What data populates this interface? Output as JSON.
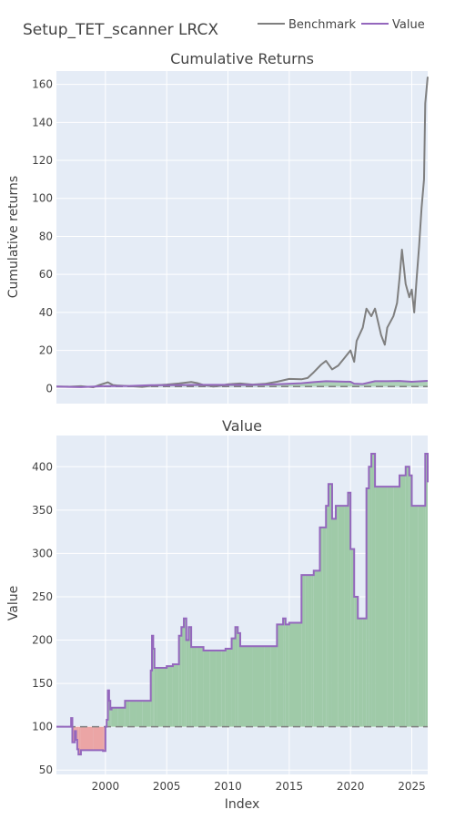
{
  "title": "Setup_TET_scanner LRCX",
  "legend": {
    "position": "top-right",
    "items": [
      {
        "label": "Benchmark",
        "color": "#7f7f7f"
      },
      {
        "label": "Value",
        "color": "#9467bd"
      }
    ]
  },
  "colors": {
    "plot_bg": "#e5ecf6",
    "grid": "#ffffff",
    "benchmark": "#7f7f7f",
    "value": "#9467bd",
    "fill_above": "#9fcaa8",
    "fill_below": "#eba5a5",
    "baseline": "#808080"
  },
  "chart_data": [
    {
      "type": "line",
      "title": "Cumulative Returns",
      "xlabel": "",
      "ylabel": "Cumulative returns",
      "xlim": [
        1996.0,
        2026.3
      ],
      "ylim": [
        -8,
        167
      ],
      "xticks": [
        2000,
        2005,
        2010,
        2015,
        2020,
        2025
      ],
      "yticks": [
        0,
        20,
        40,
        60,
        80,
        100,
        120,
        140,
        160
      ],
      "grid": true,
      "baseline": 1,
      "series": [
        {
          "name": "Benchmark",
          "x": [
            1996.0,
            1997.0,
            1998.0,
            1999.0,
            1999.5,
            2000.2,
            2000.6,
            2001.0,
            2002.0,
            2003.0,
            2004.0,
            2005.0,
            2006.0,
            2007.0,
            2007.5,
            2008.0,
            2008.8,
            2009.2,
            2010.0,
            2011.0,
            2012.0,
            2013.0,
            2014.0,
            2015.0,
            2016.0,
            2016.5,
            2017.0,
            2017.6,
            2018.0,
            2018.5,
            2019.0,
            2019.5,
            2020.0,
            2020.3,
            2020.5,
            2021.0,
            2021.3,
            2021.7,
            2022.0,
            2022.5,
            2022.8,
            2023.0,
            2023.5,
            2023.8,
            2024.0,
            2024.2,
            2024.5,
            2024.8,
            2025.0,
            2025.2,
            2025.4,
            2025.6,
            2025.8,
            2026.0,
            2026.1,
            2026.3
          ],
          "y": [
            1.0,
            0.9,
            1.2,
            0.6,
            1.8,
            3.2,
            1.8,
            1.5,
            1.2,
            0.8,
            1.6,
            2.0,
            2.6,
            3.4,
            2.8,
            1.8,
            1.0,
            1.2,
            2.2,
            2.6,
            2.0,
            2.4,
            3.5,
            5.0,
            4.8,
            5.5,
            8.5,
            12.5,
            14.5,
            10.0,
            12.0,
            16.0,
            20.0,
            14.0,
            25.0,
            32.0,
            42.0,
            38.0,
            42.0,
            28.0,
            23.0,
            32.0,
            38.0,
            45.0,
            58.0,
            73.0,
            55.0,
            48.0,
            52.0,
            40.0,
            58.0,
            75.0,
            95.0,
            110.0,
            150.0,
            164.0
          ]
        },
        {
          "name": "Value",
          "x": [
            1996.0,
            1997.0,
            1998.0,
            2000.0,
            2002.0,
            2003.7,
            2005.0,
            2008.0,
            2012.0,
            2014.0,
            2016.0,
            2017.0,
            2018.0,
            2020.0,
            2020.3,
            2021.0,
            2022.0,
            2023.0,
            2024.0,
            2025.0,
            2026.3
          ],
          "y": [
            1.0,
            0.8,
            0.7,
            1.2,
            1.3,
            1.7,
            1.7,
            1.9,
            1.9,
            2.2,
            2.7,
            3.3,
            3.8,
            3.5,
            2.5,
            2.3,
            3.8,
            3.8,
            3.9,
            3.5,
            4.0
          ]
        }
      ]
    },
    {
      "type": "area",
      "title": "Value",
      "xlabel": "Index",
      "ylabel": "Value",
      "xlim": [
        1996.0,
        2026.3
      ],
      "ylim": [
        45,
        436
      ],
      "xticks": [
        2000,
        2005,
        2010,
        2015,
        2020,
        2025
      ],
      "yticks": [
        50,
        100,
        150,
        200,
        250,
        300,
        350,
        400
      ],
      "grid": true,
      "baseline": 100,
      "series": [
        {
          "name": "Value",
          "x": [
            1996.0,
            1997.1,
            1997.2,
            1997.3,
            1997.5,
            1997.6,
            1997.7,
            1997.8,
            1998.0,
            1999.0,
            1999.8,
            2000.0,
            2000.1,
            2000.2,
            2000.3,
            2000.4,
            2000.5,
            2001.0,
            2001.5,
            2001.6,
            2002.0,
            2002.5,
            2003.0,
            2003.5,
            2003.7,
            2003.8,
            2003.9,
            2004.0,
            2004.2,
            2005.0,
            2005.5,
            2006.0,
            2006.2,
            2006.4,
            2006.6,
            2006.8,
            2007.0,
            2007.5,
            2008.0,
            2008.5,
            2009.0,
            2009.5,
            2009.8,
            2010.0,
            2010.3,
            2010.6,
            2010.8,
            2011.0,
            2012.0,
            2013.0,
            2013.5,
            2014.0,
            2014.5,
            2014.7,
            2015.0,
            2016.0,
            2016.3,
            2016.5,
            2016.8,
            2017.0,
            2017.5,
            2017.7,
            2018.0,
            2018.2,
            2018.5,
            2018.8,
            2019.0,
            2019.5,
            2019.8,
            2020.0,
            2020.3,
            2020.6,
            2021.0,
            2021.3,
            2021.5,
            2021.7,
            2022.0,
            2023.0,
            2023.5,
            2024.0,
            2024.5,
            2024.8,
            2025.0,
            2025.5,
            2026.0,
            2026.1,
            2026.3
          ],
          "y": [
            100,
            100,
            110,
            82,
            95,
            85,
            74,
            68,
            73,
            73,
            72,
            100,
            108,
            142,
            130,
            120,
            122,
            122,
            122,
            130,
            130,
            130,
            130,
            130,
            165,
            205,
            190,
            168,
            168,
            170,
            172,
            205,
            215,
            225,
            200,
            215,
            192,
            192,
            188,
            188,
            188,
            188,
            190,
            190,
            202,
            215,
            208,
            193,
            193,
            193,
            193,
            218,
            225,
            218,
            220,
            275,
            275,
            275,
            275,
            280,
            330,
            330,
            355,
            380,
            340,
            355,
            355,
            355,
            370,
            305,
            250,
            225,
            225,
            375,
            400,
            415,
            377,
            377,
            377,
            390,
            400,
            390,
            355,
            355,
            355,
            415,
            382
          ]
        }
      ]
    }
  ]
}
